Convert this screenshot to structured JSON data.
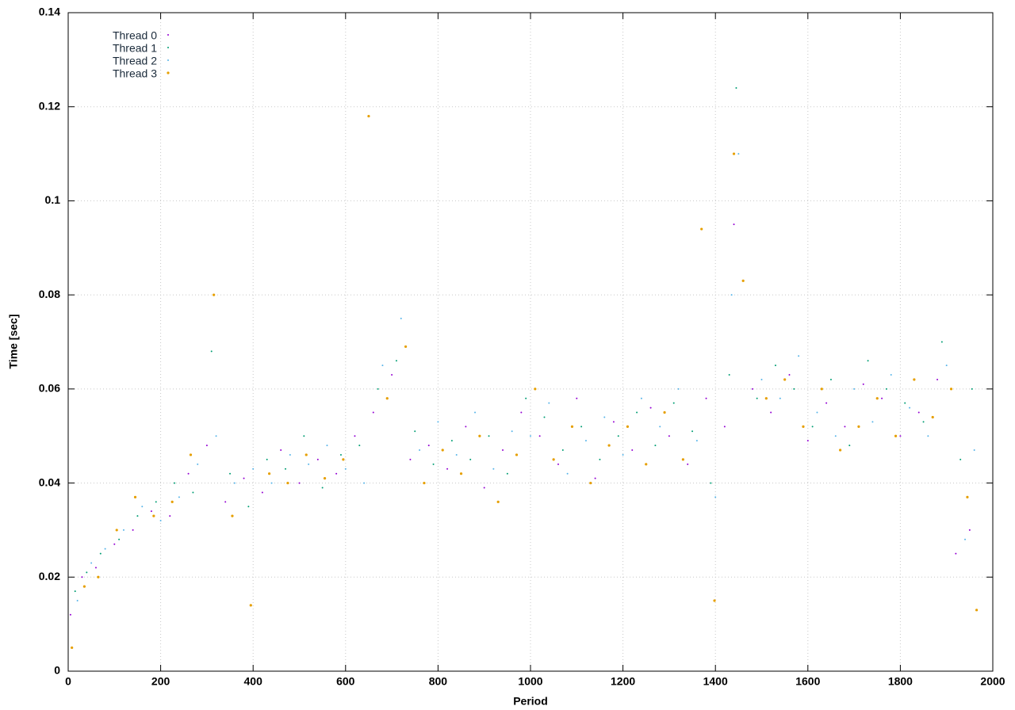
{
  "chart_data": {
    "type": "scatter",
    "xlabel": "Period",
    "ylabel": "Time [sec]",
    "xlim": [
      0,
      2000
    ],
    "ylim": [
      0,
      0.14
    ],
    "xticks": [
      0,
      200,
      400,
      600,
      800,
      1000,
      1200,
      1400,
      1600,
      1800,
      2000
    ],
    "yticks": [
      0,
      0.02,
      0.04,
      0.06,
      0.08,
      0.1,
      0.12,
      0.14
    ],
    "grid": true,
    "legend": "top-left",
    "series": [
      {
        "name": "Thread 0",
        "color": "#9400d3",
        "x": [
          5,
          30,
          60,
          100,
          140,
          180,
          220,
          260,
          300,
          340,
          380,
          420,
          460,
          500,
          540,
          580,
          620,
          660,
          700,
          740,
          780,
          820,
          860,
          900,
          940,
          980,
          1020,
          1060,
          1100,
          1140,
          1180,
          1220,
          1260,
          1300,
          1340,
          1380,
          1420,
          1440,
          1480,
          1520,
          1560,
          1600,
          1640,
          1680,
          1720,
          1760,
          1800,
          1840,
          1880,
          1920,
          1950
        ],
        "values": [
          0.012,
          0.02,
          0.022,
          0.027,
          0.03,
          0.034,
          0.033,
          0.042,
          0.048,
          0.036,
          0.041,
          0.038,
          0.047,
          0.04,
          0.045,
          0.042,
          0.05,
          0.055,
          0.063,
          0.045,
          0.048,
          0.043,
          0.052,
          0.039,
          0.047,
          0.055,
          0.05,
          0.044,
          0.058,
          0.041,
          0.053,
          0.047,
          0.056,
          0.05,
          0.044,
          0.058,
          0.052,
          0.095,
          0.06,
          0.055,
          0.063,
          0.049,
          0.057,
          0.052,
          0.061,
          0.058,
          0.05,
          0.055,
          0.062,
          0.025,
          0.03
        ]
      },
      {
        "name": "Thread 1",
        "color": "#009e73",
        "x": [
          15,
          40,
          70,
          110,
          150,
          190,
          230,
          270,
          310,
          350,
          390,
          430,
          470,
          510,
          550,
          590,
          630,
          670,
          710,
          750,
          790,
          830,
          870,
          910,
          950,
          990,
          1030,
          1070,
          1110,
          1150,
          1190,
          1230,
          1270,
          1310,
          1350,
          1390,
          1430,
          1445,
          1490,
          1530,
          1570,
          1610,
          1650,
          1690,
          1730,
          1770,
          1810,
          1850,
          1890,
          1930,
          1955
        ],
        "values": [
          0.017,
          0.021,
          0.025,
          0.028,
          0.033,
          0.036,
          0.04,
          0.038,
          0.068,
          0.042,
          0.035,
          0.045,
          0.043,
          0.05,
          0.039,
          0.046,
          0.048,
          0.06,
          0.066,
          0.051,
          0.044,
          0.049,
          0.045,
          0.05,
          0.042,
          0.058,
          0.054,
          0.047,
          0.052,
          0.045,
          0.05,
          0.055,
          0.048,
          0.057,
          0.051,
          0.04,
          0.063,
          0.124,
          0.058,
          0.065,
          0.06,
          0.052,
          0.062,
          0.048,
          0.066,
          0.06,
          0.057,
          0.053,
          0.07,
          0.045,
          0.06
        ]
      },
      {
        "name": "Thread 2",
        "color": "#56b4e9",
        "x": [
          20,
          50,
          80,
          120,
          160,
          200,
          240,
          280,
          320,
          360,
          400,
          440,
          480,
          520,
          560,
          600,
          640,
          680,
          720,
          760,
          800,
          840,
          880,
          920,
          960,
          1000,
          1040,
          1080,
          1120,
          1160,
          1200,
          1240,
          1280,
          1320,
          1360,
          1400,
          1435,
          1450,
          1500,
          1540,
          1580,
          1620,
          1660,
          1700,
          1740,
          1780,
          1820,
          1860,
          1900,
          1940,
          1960
        ],
        "values": [
          0.015,
          0.023,
          0.026,
          0.03,
          0.035,
          0.032,
          0.037,
          0.044,
          0.05,
          0.04,
          0.043,
          0.04,
          0.046,
          0.044,
          0.048,
          0.043,
          0.04,
          0.065,
          0.075,
          0.047,
          0.053,
          0.046,
          0.055,
          0.043,
          0.051,
          0.05,
          0.057,
          0.042,
          0.049,
          0.054,
          0.046,
          0.058,
          0.052,
          0.06,
          0.049,
          0.037,
          0.08,
          0.11,
          0.062,
          0.058,
          0.067,
          0.055,
          0.05,
          0.06,
          0.053,
          0.063,
          0.056,
          0.05,
          0.065,
          0.028,
          0.047
        ]
      },
      {
        "name": "Thread 3",
        "color": "#e69f00",
        "x": [
          8,
          35,
          65,
          105,
          145,
          185,
          225,
          265,
          315,
          355,
          395,
          435,
          475,
          515,
          555,
          595,
          650,
          690,
          730,
          770,
          810,
          850,
          890,
          930,
          970,
          1010,
          1050,
          1090,
          1130,
          1170,
          1210,
          1250,
          1290,
          1330,
          1370,
          1398,
          1440,
          1460,
          1510,
          1550,
          1590,
          1630,
          1670,
          1710,
          1750,
          1790,
          1830,
          1870,
          1910,
          1945,
          1965
        ],
        "values": [
          0.005,
          0.018,
          0.02,
          0.03,
          0.037,
          0.033,
          0.036,
          0.046,
          0.08,
          0.033,
          0.014,
          0.042,
          0.04,
          0.046,
          0.041,
          0.045,
          0.118,
          0.058,
          0.069,
          0.04,
          0.047,
          0.042,
          0.05,
          0.036,
          0.046,
          0.06,
          0.045,
          0.052,
          0.04,
          0.048,
          0.052,
          0.044,
          0.055,
          0.045,
          0.094,
          0.015,
          0.11,
          0.083,
          0.058,
          0.062,
          0.052,
          0.06,
          0.047,
          0.052,
          0.058,
          0.05,
          0.062,
          0.054,
          0.06,
          0.037,
          0.013
        ]
      }
    ]
  }
}
